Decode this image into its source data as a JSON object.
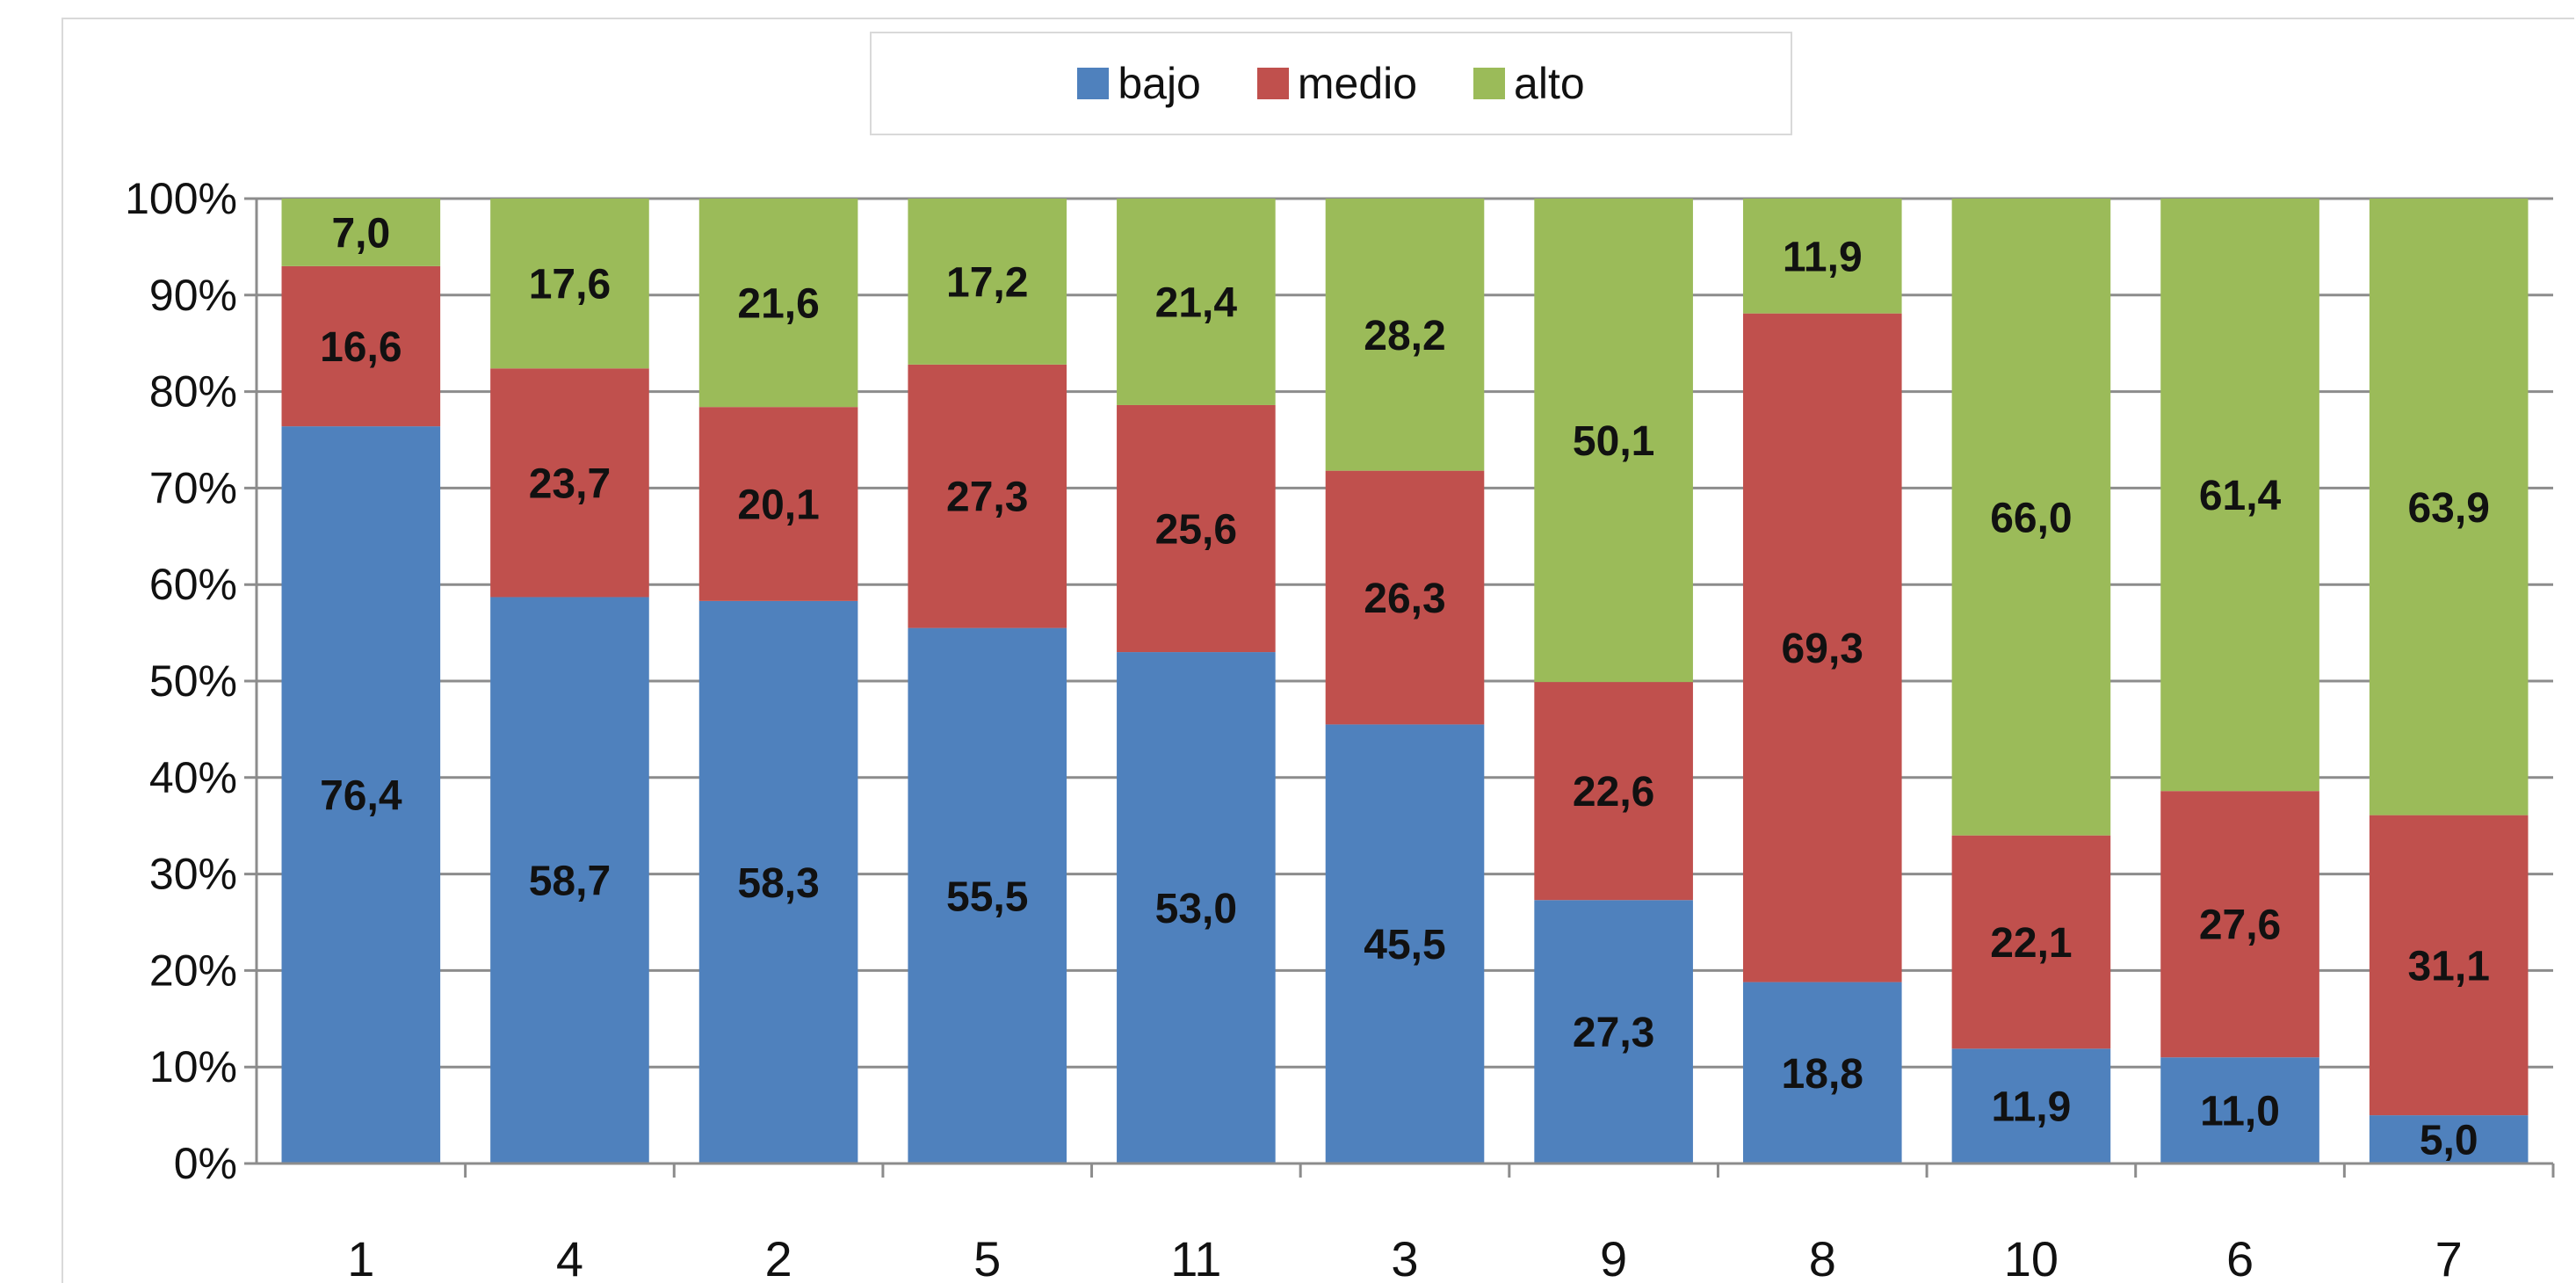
{
  "chart_data": {
    "type": "bar",
    "stacked": true,
    "normalized": true,
    "categories": [
      "1",
      "4",
      "2",
      "5",
      "11",
      "3",
      "9",
      "8",
      "10",
      "6",
      "7"
    ],
    "series": [
      {
        "name": "bajo",
        "color": "#4f81bd",
        "values": [
          76.4,
          58.7,
          58.3,
          55.5,
          53.0,
          45.5,
          27.3,
          18.8,
          11.9,
          11.0,
          5.0
        ]
      },
      {
        "name": "medio",
        "color": "#c0504d",
        "values": [
          16.6,
          23.7,
          20.1,
          27.3,
          25.6,
          26.3,
          22.6,
          69.3,
          22.1,
          27.6,
          31.1
        ]
      },
      {
        "name": "alto",
        "color": "#9bbb59",
        "values": [
          7.0,
          17.6,
          21.6,
          17.2,
          21.4,
          28.2,
          50.1,
          11.9,
          66.0,
          61.4,
          63.9
        ]
      }
    ],
    "data_labels": [
      [
        "76,4",
        "58,7",
        "58,3",
        "55,5",
        "53,0",
        "45,5",
        "27,3",
        "18,8",
        "11,9",
        "11,0",
        "5,0"
      ],
      [
        "16,6",
        "23,7",
        "20,1",
        "27,3",
        "25,6",
        "26,3",
        "22,6",
        "69,3",
        "22,1",
        "27,6",
        "31,1"
      ],
      [
        "7,0",
        "17,6",
        "21,6",
        "17,2",
        "21,4",
        "28,2",
        "50,1",
        "11,9",
        "66,0",
        "61,4",
        "63,9"
      ]
    ],
    "yticks": [
      "0%",
      "10%",
      "20%",
      "30%",
      "40%",
      "50%",
      "60%",
      "70%",
      "80%",
      "90%",
      "100%"
    ],
    "ylim": [
      0,
      100
    ],
    "grid": true,
    "legend_position": "top-center"
  }
}
